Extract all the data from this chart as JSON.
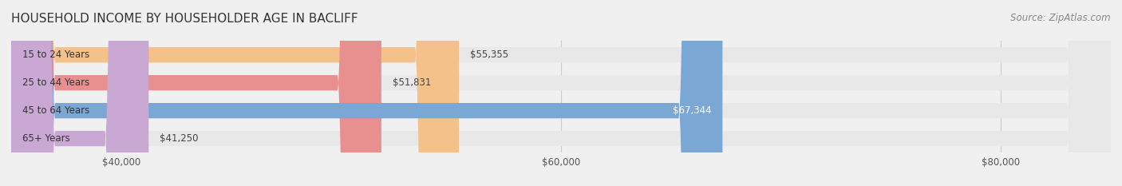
{
  "title": "HOUSEHOLD INCOME BY HOUSEHOLDER AGE IN BACLIFF",
  "source": "Source: ZipAtlas.com",
  "categories": [
    "15 to 24 Years",
    "25 to 44 Years",
    "45 to 64 Years",
    "65+ Years"
  ],
  "values": [
    55355,
    51831,
    67344,
    41250
  ],
  "bar_colors": [
    "#F5C18A",
    "#E89090",
    "#7BA7D4",
    "#C9A8D4"
  ],
  "bar_labels": [
    "$55,355",
    "$51,831",
    "$67,344",
    "$41,250"
  ],
  "label_colors": [
    "#555555",
    "#555555",
    "#ffffff",
    "#555555"
  ],
  "x_min": 35000,
  "x_max": 85000,
  "x_ticks": [
    40000,
    60000,
    80000
  ],
  "x_tick_labels": [
    "$40,000",
    "$60,000",
    "$80,000"
  ],
  "bg_color": "#f0f0f0",
  "bar_bg_color": "#e8e8e8",
  "title_fontsize": 11,
  "source_fontsize": 8.5,
  "label_fontsize": 8.5,
  "category_fontsize": 8.5,
  "tick_fontsize": 8.5
}
